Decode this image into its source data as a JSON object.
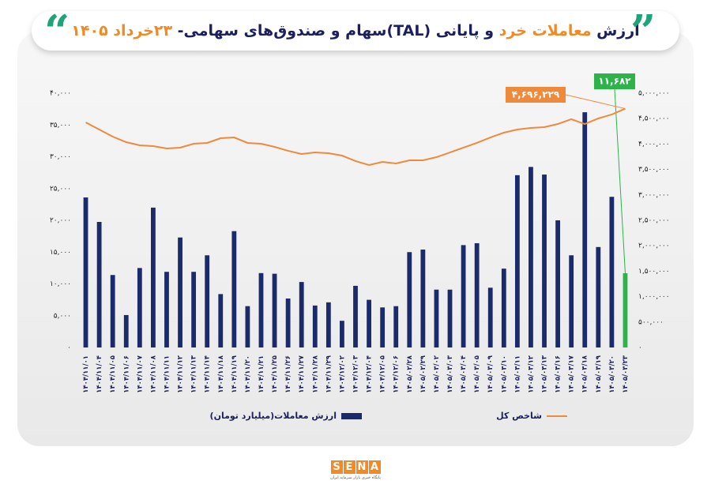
{
  "chart_data": {
    "type": "combo",
    "title": [
      "ارزش ",
      "معاملات خرد",
      " و پایانی (TAL)سهام و صندوق‌های سهامی- ",
      "۲۳خرداد ۱۴۰۵"
    ],
    "categories": [
      "۱۴۰۴/۱۱/۰۱",
      "۱۴۰۴/۱۱/۰۴",
      "۱۴۰۴/۱۱/۰۵",
      "۱۴۰۴/۱۱/۰۶",
      "۱۴۰۴/۱۱/۰۷",
      "۱۴۰۴/۱۱/۰۸",
      "۱۴۰۴/۱۱/۱۱",
      "۱۴۰۴/۱۱/۱۲",
      "۱۴۰۴/۱۱/۱۳",
      "۱۴۰۴/۱۱/۱۴",
      "۱۴۰۴/۱۱/۱۸",
      "۱۴۰۴/۱۱/۱۹",
      "۱۴۰۴/۱۱/۲۰",
      "۱۴۰۴/۱۱/۲۱",
      "۱۴۰۴/۱۱/۲۵",
      "۱۴۰۴/۱۱/۲۶",
      "۱۴۰۴/۱۱/۲۷",
      "۱۴۰۴/۱۱/۲۸",
      "۱۴۰۴/۱۱/۲۹",
      "۱۴۰۴/۱۲/۰۲",
      "۱۴۰۴/۱۲/۰۳",
      "۱۴۰۴/۱۲/۰۴",
      "۱۴۰۴/۱۲/۰۵",
      "۱۴۰۴/۱۲/۰۶",
      "۱۴۰۵/۰۲/۲۸",
      "۱۴۰۵/۰۲/۲۹",
      "۱۴۰۵/۰۳/۰۲",
      "۱۴۰۵/۰۳/۰۳",
      "۱۴۰۵/۰۳/۰۴",
      "۱۴۰۵/۰۳/۰۵",
      "۱۴۰۵/۰۳/۰۹",
      "۱۴۰۵/۰۳/۱۰",
      "۱۴۰۵/۰۳/۱۱",
      "۱۴۰۵/۰۳/۱۲",
      "۱۴۰۵/۰۳/۱۳",
      "۱۴۰۵/۰۳/۱۶",
      "۱۴۰۵/۰۳/۱۷",
      "۱۴۰۵/۰۳/۱۸",
      "۱۴۰۵/۰۳/۱۹",
      "۱۴۰۵/۰۳/۲۰",
      "۱۴۰۵/۰۳/۲۳"
    ],
    "series": [
      {
        "name": "ارزش معاملات(میلیارد تومان)",
        "type": "bar",
        "color": "#1b2a6b",
        "highlight_color": "#2db34a",
        "values": [
          23600,
          19750,
          11400,
          5100,
          12500,
          22000,
          11900,
          17300,
          11900,
          14500,
          8400,
          18300,
          6500,
          11700,
          11600,
          7700,
          10300,
          6600,
          7100,
          4200,
          9700,
          7500,
          6300,
          6500,
          15000,
          15400,
          9100,
          9100,
          16100,
          16400,
          9400,
          12400,
          27100,
          28400,
          27200,
          20000,
          14500,
          37000,
          15800,
          23700,
          11682
        ],
        "value_labels": [
          null,
          null,
          null,
          null,
          null,
          null,
          null,
          null,
          null,
          null,
          null,
          null,
          null,
          null,
          null,
          null,
          null,
          null,
          null,
          null,
          null,
          null,
          null,
          null,
          null,
          null,
          null,
          null,
          null,
          null,
          null,
          null,
          null,
          null,
          null,
          null,
          null,
          null,
          null,
          null,
          "۱۱,۶۸۲"
        ]
      },
      {
        "name": "شاخص کل",
        "type": "line",
        "axis": "y2",
        "color": "#ee8a3c",
        "values": [
          4425000,
          4286000,
          4146000,
          4037000,
          3975000,
          3960000,
          3913000,
          3929000,
          4006000,
          4022000,
          4115000,
          4130000,
          4022000,
          4006000,
          3944000,
          3867000,
          3804000,
          3835000,
          3820000,
          3773000,
          3665000,
          3587000,
          3649000,
          3618000,
          3680000,
          3680000,
          3742000,
          3835000,
          3929000,
          4022000,
          4130000,
          4224000,
          4286000,
          4317000,
          4332000,
          4394000,
          4488000,
          4394000,
          4503000,
          4581000,
          4696229
        ],
        "value_labels": [
          null,
          null,
          null,
          null,
          null,
          null,
          null,
          null,
          null,
          null,
          null,
          null,
          null,
          null,
          null,
          null,
          null,
          null,
          null,
          null,
          null,
          null,
          null,
          null,
          null,
          null,
          null,
          null,
          null,
          null,
          null,
          null,
          null,
          null,
          null,
          null,
          null,
          null,
          null,
          null,
          "۴,۶۹۶,۲۲۹"
        ]
      }
    ],
    "ylim": [
      0,
      40000
    ],
    "yticks": [
      {
        "value": 0,
        "label": "۰"
      },
      {
        "value": 5000,
        "label": "۵,۰۰۰"
      },
      {
        "value": 10000,
        "label": "۱۰,۰۰۰"
      },
      {
        "value": 15000,
        "label": "۱۵,۰۰۰"
      },
      {
        "value": 20000,
        "label": "۲۰,۰۰۰"
      },
      {
        "value": 25000,
        "label": "۲۵,۰۰۰"
      },
      {
        "value": 30000,
        "label": "۳۰,۰۰۰"
      },
      {
        "value": 35000,
        "label": "۳۵,۰۰۰"
      },
      {
        "value": 40000,
        "label": "۴۰,۰۰۰"
      }
    ],
    "y2lim": [
      0,
      5000000
    ],
    "y2ticks": [
      {
        "value": 0,
        "label": "۰"
      },
      {
        "value": 500000,
        "label": "۵۰۰,۰۰۰"
      },
      {
        "value": 1000000,
        "label": "۱,۰۰۰,۰۰۰"
      },
      {
        "value": 1500000,
        "label": "۱,۵۰۰,۰۰۰"
      },
      {
        "value": 2000000,
        "label": "۲,۰۰۰,۰۰۰"
      },
      {
        "value": 2500000,
        "label": "۲,۵۰۰,۰۰۰"
      },
      {
        "value": 3000000,
        "label": "۳,۰۰۰,۰۰۰"
      },
      {
        "value": 3500000,
        "label": "۳,۵۰۰,۰۰۰"
      },
      {
        "value": 4000000,
        "label": "۴,۰۰۰,۰۰۰"
      },
      {
        "value": 4500000,
        "label": "۴,۵۰۰,۰۰۰"
      },
      {
        "value": 5000000,
        "label": "۵,۰۰۰,۰۰۰"
      }
    ],
    "grid": false
  },
  "logo": {
    "name": "SENA",
    "subtitle": "پایگاه خبری بازار سرمایه ایران"
  }
}
